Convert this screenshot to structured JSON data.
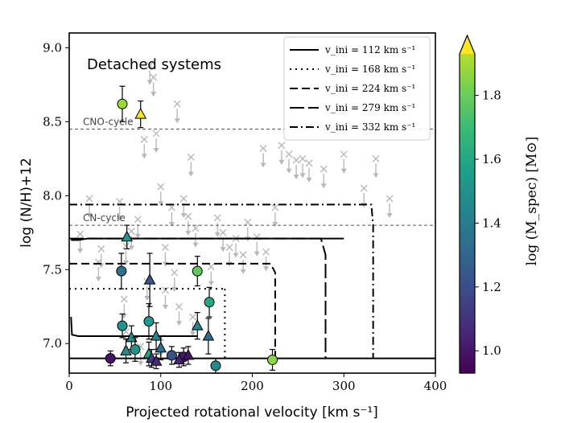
{
  "chart_data": {
    "type": "scatter",
    "title": "",
    "panel_label": "Detached systems",
    "xlabel": "Projected rotational velocity [km s⁻¹]",
    "ylabel": "log (N/H)+12",
    "xlim": [
      0,
      400
    ],
    "ylim": [
      6.8,
      9.1
    ],
    "x_ticks": [
      0,
      100,
      200,
      300,
      400
    ],
    "x_tick_labels": [
      "0",
      "100",
      "200",
      "300",
      "400"
    ],
    "y_ticks": [
      7.0,
      7.5,
      8.0,
      8.5,
      9.0
    ],
    "y_tick_labels": [
      "7.0",
      "7.5",
      "8.0",
      "8.5",
      "9.0"
    ],
    "reference_lines": [
      {
        "label": "CNO-cycle",
        "y": 8.45
      },
      {
        "label": "CN-cycle",
        "y": 7.8
      }
    ],
    "legend": {
      "placement": "top-right",
      "entries": [
        {
          "label": "v_ini = 112 km s⁻¹",
          "style": "solid"
        },
        {
          "label": "v_ini = 168 km s⁻¹",
          "style": "dotted"
        },
        {
          "label": "v_ini = 224 km s⁻¹",
          "style": "dashed"
        },
        {
          "label": "v_ini = 279 km s⁻¹",
          "style": "longdash"
        },
        {
          "label": "v_ini = 332 km s⁻¹",
          "style": "dashdot"
        }
      ]
    },
    "tracks": [
      {
        "name": "v_ini = 112 km s⁻¹",
        "style": "solid",
        "points": [
          [
            2,
            7.7
          ],
          [
            10,
            7.7
          ],
          [
            20,
            7.71
          ],
          [
            300,
            7.71
          ]
        ]
      },
      {
        "name": "v_ini = 112 km s⁻¹ low",
        "style": "solid",
        "points": [
          [
            2,
            7.18
          ],
          [
            3,
            7.06
          ],
          [
            10,
            7.05
          ],
          [
            140,
            7.05
          ]
        ]
      },
      {
        "name": "v_ini = 168 km s⁻¹",
        "style": "dotted",
        "points": [
          [
            0,
            7.37
          ],
          [
            170,
            7.37
          ]
        ]
      },
      {
        "name": "v_ini = 168 km s⁻¹ vertical",
        "style": "dotted",
        "points": [
          [
            170,
            7.37
          ],
          [
            170,
            6.9
          ]
        ]
      },
      {
        "name": "v_ini = 224 km s⁻¹",
        "style": "dashed",
        "points": [
          [
            0,
            7.54
          ],
          [
            220,
            7.54
          ],
          [
            225,
            7.48
          ],
          [
            225,
            6.9
          ]
        ]
      },
      {
        "name": "v_ini = 279 km s⁻¹",
        "style": "longdash",
        "points": [
          [
            0,
            7.71
          ],
          [
            275,
            7.71
          ],
          [
            280,
            7.6
          ],
          [
            280,
            6.9
          ]
        ]
      },
      {
        "name": "v_ini = 332 km s⁻¹",
        "style": "dashdot",
        "points": [
          [
            0,
            7.94
          ],
          [
            330,
            7.94
          ],
          [
            332,
            7.8
          ],
          [
            332,
            6.9
          ]
        ]
      },
      {
        "name": "baseline",
        "style": "solid",
        "points": [
          [
            0,
            6.9
          ],
          [
            400,
            6.9
          ]
        ]
      }
    ],
    "upper_limits_x": [
      [
        12,
        7.74
      ],
      [
        22,
        7.98
      ],
      [
        32,
        7.55
      ],
      [
        35,
        7.64
      ],
      [
        55,
        7.96
      ],
      [
        62,
        7.66
      ],
      [
        68,
        7.76
      ],
      [
        75,
        7.84
      ],
      [
        82,
        8.38
      ],
      [
        88,
        8.88
      ],
      [
        92,
        8.8
      ],
      [
        95,
        8.42
      ],
      [
        100,
        8.06
      ],
      [
        105,
        7.65
      ],
      [
        112,
        7.92
      ],
      [
        118,
        8.62
      ],
      [
        125,
        7.98
      ],
      [
        130,
        7.86
      ],
      [
        133,
        8.26
      ],
      [
        138,
        7.78
      ],
      [
        155,
        7.52
      ],
      [
        162,
        7.85
      ],
      [
        168,
        7.75
      ],
      [
        175,
        7.65
      ],
      [
        182,
        7.71
      ],
      [
        190,
        7.6
      ],
      [
        195,
        7.82
      ],
      [
        205,
        7.72
      ],
      [
        212,
        8.32
      ],
      [
        215,
        7.62
      ],
      [
        225,
        7.92
      ],
      [
        232,
        8.34
      ],
      [
        240,
        8.28
      ],
      [
        248,
        8.24
      ],
      [
        255,
        8.25
      ],
      [
        262,
        8.22
      ],
      [
        278,
        8.18
      ],
      [
        300,
        8.28
      ],
      [
        322,
        8.05
      ],
      [
        335,
        8.25
      ],
      [
        350,
        7.98
      ],
      [
        62,
        7.08
      ],
      [
        78,
        6.98
      ],
      [
        100,
        7.04
      ],
      [
        120,
        7.25
      ],
      [
        135,
        7.18
      ],
      [
        60,
        7.3
      ],
      [
        85,
        7.42
      ],
      [
        105,
        7.36
      ],
      [
        115,
        7.48
      ]
    ],
    "colorbar": {
      "label": "log (M_spec) [M⊙]",
      "range": [
        0.93,
        1.97
      ],
      "ticks": [
        1.0,
        1.2,
        1.4,
        1.6,
        1.8
      ],
      "tick_labels": [
        "1.0",
        "1.2",
        "1.4",
        "1.6",
        "1.8"
      ],
      "extend": "max"
    },
    "points": [
      {
        "x": 58,
        "y": 8.62,
        "err": 0.12,
        "logM": 1.78,
        "marker": "circle"
      },
      {
        "x": 78,
        "y": 8.55,
        "err": 0.09,
        "logM": 1.92,
        "marker": "triangle"
      },
      {
        "x": 63,
        "y": 7.72,
        "err": 0.08,
        "logM": 1.45,
        "marker": "triangle"
      },
      {
        "x": 57,
        "y": 7.49,
        "err": 0.12,
        "logM": 1.3,
        "marker": "circle"
      },
      {
        "x": 140,
        "y": 7.49,
        "err": 0.1,
        "logM": 1.68,
        "marker": "circle"
      },
      {
        "x": 88,
        "y": 7.43,
        "err": 0.18,
        "logM": 1.2,
        "marker": "triangle"
      },
      {
        "x": 153,
        "y": 7.28,
        "err": 0.1,
        "logM": 1.52,
        "marker": "circle"
      },
      {
        "x": 58,
        "y": 7.12,
        "err": 0.08,
        "logM": 1.45,
        "marker": "circle"
      },
      {
        "x": 87,
        "y": 7.15,
        "err": 0.12,
        "logM": 1.47,
        "marker": "circle"
      },
      {
        "x": 140,
        "y": 7.12,
        "err": 0.09,
        "logM": 1.38,
        "marker": "triangle"
      },
      {
        "x": 152,
        "y": 7.05,
        "err": 0.12,
        "logM": 1.28,
        "marker": "triangle"
      },
      {
        "x": 68,
        "y": 7.04,
        "err": 0.08,
        "logM": 1.42,
        "marker": "triangle"
      },
      {
        "x": 95,
        "y": 7.05,
        "err": 0.09,
        "logM": 1.38,
        "marker": "triangle"
      },
      {
        "x": 100,
        "y": 6.97,
        "err": 0.08,
        "logM": 1.3,
        "marker": "triangle"
      },
      {
        "x": 72,
        "y": 6.96,
        "err": 0.08,
        "logM": 1.45,
        "marker": "circle"
      },
      {
        "x": 62,
        "y": 6.95,
        "err": 0.08,
        "logM": 1.4,
        "marker": "triangle"
      },
      {
        "x": 87,
        "y": 6.93,
        "err": 0.08,
        "logM": 1.5,
        "marker": "triangle"
      },
      {
        "x": 90,
        "y": 6.9,
        "err": 0.06,
        "logM": 1.1,
        "marker": "triangle"
      },
      {
        "x": 112,
        "y": 6.92,
        "err": 0.06,
        "logM": 1.18,
        "marker": "circle"
      },
      {
        "x": 125,
        "y": 6.91,
        "err": 0.06,
        "logM": 1.0,
        "marker": "circle"
      },
      {
        "x": 130,
        "y": 6.92,
        "err": 0.06,
        "logM": 0.98,
        "marker": "triangle"
      },
      {
        "x": 45,
        "y": 6.9,
        "err": 0.05,
        "logM": 0.98,
        "marker": "circle"
      },
      {
        "x": 95,
        "y": 6.88,
        "err": 0.05,
        "logM": 1.05,
        "marker": "triangle"
      },
      {
        "x": 120,
        "y": 6.89,
        "err": 0.05,
        "logM": 1.02,
        "marker": "triangle"
      },
      {
        "x": 160,
        "y": 6.85,
        "err": 0.05,
        "logM": 1.4,
        "marker": "circle"
      },
      {
        "x": 222,
        "y": 6.89,
        "err": 0.07,
        "logM": 1.75,
        "marker": "circle"
      }
    ]
  }
}
